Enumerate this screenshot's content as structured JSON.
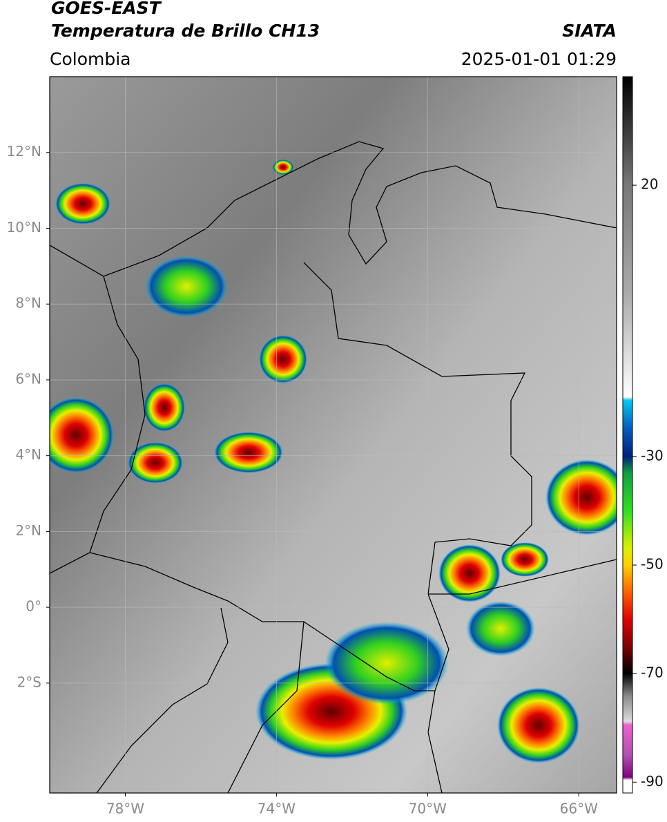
{
  "header": {
    "title": "GOES-EAST",
    "subtitle": "Temperatura de Brillo CH13",
    "source": "SIATA",
    "region": "Colombia",
    "timestamp": "2025-01-01 01:29"
  },
  "map": {
    "xlim": [
      -80,
      -65
    ],
    "ylim": [
      -4.9,
      14
    ],
    "xticks": [
      {
        "value": -78,
        "label": "78°W"
      },
      {
        "value": -74,
        "label": "74°W"
      },
      {
        "value": -70,
        "label": "70°W"
      },
      {
        "value": -66,
        "label": "66°W"
      }
    ],
    "yticks": [
      {
        "value": 12,
        "label": "12°N"
      },
      {
        "value": 10,
        "label": "10°N"
      },
      {
        "value": 8,
        "label": "8°N"
      },
      {
        "value": 6,
        "label": "6°N"
      },
      {
        "value": 4,
        "label": "4°N"
      },
      {
        "value": 2,
        "label": "2°N"
      },
      {
        "value": 0,
        "label": "0°"
      },
      {
        "value": -2,
        "label": "2°S"
      }
    ],
    "grid": true
  },
  "colorbar": {
    "lim": [
      -92,
      40
    ],
    "ticks": [
      20,
      -30,
      -50,
      -70,
      -90
    ]
  }
}
